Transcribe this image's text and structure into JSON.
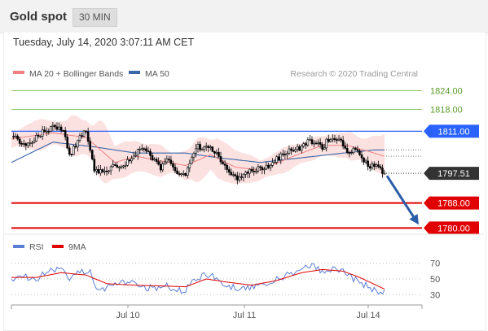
{
  "header": {
    "title": "Gold spot",
    "timeframe": "30 MIN"
  },
  "timestamp": "Tuesday, July 14, 2020 3:07:11 AM CET",
  "colors": {
    "candle_up": "#ffffff",
    "candle_down": "#000000",
    "bollinger_fill": "#fbdcdc",
    "ma20": "#f08080",
    "ma50": "#3a66a8",
    "resistance": "#8fc46a",
    "pivot": "#2962ff",
    "support": "#e00000",
    "last_price": "#333333",
    "arrow": "#2a5ca8",
    "rsi": "#5b7fd6",
    "rsi_ma": "#e00000"
  },
  "chart_data": [
    {
      "type": "candlestick",
      "legend": [
        {
          "label": "MA 20 + Bollinger Bands",
          "color": "#f08080"
        },
        {
          "label": "MA 50",
          "color": "#3a66a8"
        }
      ],
      "credit": "Research © 2020 Trading Central",
      "ylim": [
        1778,
        1827
      ],
      "levels": [
        {
          "value": 1824.0,
          "label": "1824.00",
          "role": "resistance"
        },
        {
          "value": 1818.0,
          "label": "1818.00",
          "role": "resistance"
        },
        {
          "value": 1811.0,
          "label": "1811.00",
          "role": "pivot"
        },
        {
          "value": 1788.0,
          "label": "1788.00",
          "role": "support"
        },
        {
          "value": 1780.0,
          "label": "1780.00",
          "role": "support"
        }
      ],
      "last_price": {
        "value": 1797.51,
        "label": "1797.51"
      },
      "x_ticks": [
        "Jul 10",
        "Jul 11",
        "Jul 14"
      ],
      "keypoints": [
        [
          0,
          1810
        ],
        [
          5,
          1806.5
        ],
        [
          10,
          1807.5
        ],
        [
          15,
          1811
        ],
        [
          20,
          1812
        ],
        [
          25,
          1811.5
        ],
        [
          28,
          1803
        ],
        [
          32,
          1808
        ],
        [
          36,
          1811
        ],
        [
          40,
          1799
        ],
        [
          44,
          1797.5
        ],
        [
          50,
          1800
        ],
        [
          56,
          1801
        ],
        [
          60,
          1804
        ],
        [
          64,
          1805.5
        ],
        [
          68,
          1802
        ],
        [
          72,
          1799
        ],
        [
          76,
          1802
        ],
        [
          80,
          1797
        ],
        [
          84,
          1797.5
        ],
        [
          86,
          1800.5
        ],
        [
          90,
          1806
        ],
        [
          96,
          1805.5
        ],
        [
          100,
          1803
        ],
        [
          104,
          1798
        ],
        [
          108,
          1796
        ],
        [
          112,
          1797
        ],
        [
          116,
          1798.5
        ],
        [
          120,
          1799
        ],
        [
          124,
          1800
        ],
        [
          128,
          1802
        ],
        [
          132,
          1804
        ],
        [
          136,
          1805
        ],
        [
          140,
          1806
        ],
        [
          144,
          1808
        ],
        [
          148,
          1807.5
        ],
        [
          150,
          1805
        ],
        [
          152,
          1808
        ],
        [
          156,
          1808.5
        ],
        [
          160,
          1807
        ],
        [
          163,
          1804
        ],
        [
          165,
          1806
        ],
        [
          168,
          1803.5
        ],
        [
          172,
          1800
        ],
        [
          176,
          1799.5
        ],
        [
          180,
          1797.5
        ]
      ],
      "ma20_keypoints": [
        [
          0,
          1808.5
        ],
        [
          20,
          1810.5
        ],
        [
          36,
          1809
        ],
        [
          50,
          1801
        ],
        [
          60,
          1803
        ],
        [
          72,
          1801.5
        ],
        [
          84,
          1800
        ],
        [
          96,
          1803.5
        ],
        [
          108,
          1799.5
        ],
        [
          120,
          1798.5
        ],
        [
          136,
          1803
        ],
        [
          150,
          1806.5
        ],
        [
          162,
          1806.5
        ],
        [
          170,
          1805
        ],
        [
          180,
          1803
        ]
      ],
      "ma50_keypoints": [
        [
          0,
          1801
        ],
        [
          20,
          1807.5
        ],
        [
          40,
          1806
        ],
        [
          60,
          1804
        ],
        [
          84,
          1804
        ],
        [
          100,
          1802.5
        ],
        [
          120,
          1801
        ],
        [
          140,
          1802.5
        ],
        [
          160,
          1804
        ],
        [
          175,
          1805
        ]
      ]
    },
    {
      "type": "line",
      "legend": [
        {
          "label": "RSI",
          "color": "#5b7fd6"
        },
        {
          "label": "9MA",
          "color": "#e00000"
        }
      ],
      "ylim": [
        22,
        78
      ],
      "y_ticks": [
        70,
        50,
        30
      ],
      "rsi_keypoints": [
        [
          0,
          47
        ],
        [
          6,
          54
        ],
        [
          12,
          50
        ],
        [
          18,
          60
        ],
        [
          24,
          62
        ],
        [
          28,
          52
        ],
        [
          34,
          58
        ],
        [
          38,
          60
        ],
        [
          40,
          44
        ],
        [
          44,
          35
        ],
        [
          48,
          42
        ],
        [
          56,
          46
        ],
        [
          62,
          40
        ],
        [
          68,
          38
        ],
        [
          74,
          42
        ],
        [
          80,
          35
        ],
        [
          84,
          36
        ],
        [
          88,
          50
        ],
        [
          94,
          55
        ],
        [
          100,
          50
        ],
        [
          104,
          40
        ],
        [
          110,
          38
        ],
        [
          116,
          40
        ],
        [
          122,
          44
        ],
        [
          128,
          50
        ],
        [
          134,
          56
        ],
        [
          140,
          62
        ],
        [
          146,
          66
        ],
        [
          150,
          60
        ],
        [
          156,
          64
        ],
        [
          162,
          58
        ],
        [
          166,
          48
        ],
        [
          172,
          40
        ],
        [
          176,
          34
        ],
        [
          180,
          32
        ]
      ],
      "rsi_ma_keypoints": [
        [
          0,
          52
        ],
        [
          12,
          52
        ],
        [
          24,
          58
        ],
        [
          36,
          55
        ],
        [
          46,
          44
        ],
        [
          60,
          42
        ],
        [
          74,
          41
        ],
        [
          84,
          40
        ],
        [
          94,
          50
        ],
        [
          104,
          46
        ],
        [
          116,
          42
        ],
        [
          128,
          48
        ],
        [
          140,
          58
        ],
        [
          150,
          62
        ],
        [
          160,
          60
        ],
        [
          168,
          52
        ],
        [
          176,
          42
        ],
        [
          180,
          37
        ]
      ]
    }
  ]
}
